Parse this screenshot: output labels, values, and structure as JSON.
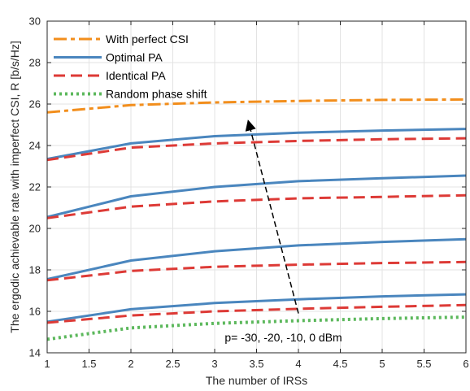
{
  "chart_data": {
    "type": "line",
    "xlabel": "The number of IRSs",
    "ylabel": "The ergodic achievable rate with imperfect CSI, R [b/s/Hz]",
    "xlim": [
      1,
      6
    ],
    "ylim": [
      14,
      30
    ],
    "xticks": [
      "1",
      "1.5",
      "2",
      "2.5",
      "3",
      "3.5",
      "4",
      "4.5",
      "5",
      "5.5",
      "6"
    ],
    "yticks": [
      "14",
      "16",
      "18",
      "20",
      "22",
      "24",
      "26",
      "28",
      "30"
    ],
    "grid": true,
    "legend_position": "top-left",
    "legend": [
      {
        "label": "With perfect CSI",
        "color": "#F28E1C",
        "style": "dashdot"
      },
      {
        "label": "Optimal PA",
        "color": "#4A86BE",
        "style": "solid"
      },
      {
        "label": "Identical PA",
        "color": "#DD3A36",
        "style": "dashed"
      },
      {
        "label": "Random phase shift",
        "color": "#5CB85C",
        "style": "dotted"
      }
    ],
    "annotation": {
      "text": "p= -30, -20, -10, 0 dBm",
      "arrow_from": [
        4.0,
        15.9
      ],
      "arrow_to": [
        3.4,
        25.2
      ]
    },
    "series": [
      {
        "group": "With perfect CSI",
        "color": "#F28E1C",
        "style": "dashdot",
        "x": [
          1,
          2,
          3,
          4,
          5,
          6
        ],
        "y": [
          25.6,
          25.95,
          26.08,
          26.15,
          26.2,
          26.22
        ]
      },
      {
        "group": "Optimal PA",
        "color": "#4A86BE",
        "style": "solid",
        "x": [
          1,
          2,
          3,
          4,
          5,
          6
        ],
        "y": [
          23.35,
          24.1,
          24.45,
          24.62,
          24.72,
          24.8
        ]
      },
      {
        "group": "Identical PA",
        "color": "#DD3A36",
        "style": "dashed",
        "x": [
          1,
          2,
          3,
          4,
          5,
          6
        ],
        "y": [
          23.3,
          23.9,
          24.1,
          24.22,
          24.3,
          24.35
        ]
      },
      {
        "group": "Optimal PA",
        "color": "#4A86BE",
        "style": "solid",
        "x": [
          1,
          2,
          3,
          4,
          5,
          6
        ],
        "y": [
          20.55,
          21.55,
          22.0,
          22.28,
          22.42,
          22.55
        ]
      },
      {
        "group": "Identical PA",
        "color": "#DD3A36",
        "style": "dashed",
        "x": [
          1,
          2,
          3,
          4,
          5,
          6
        ],
        "y": [
          20.5,
          21.05,
          21.3,
          21.45,
          21.52,
          21.6
        ]
      },
      {
        "group": "Optimal PA",
        "color": "#4A86BE",
        "style": "solid",
        "x": [
          1,
          2,
          3,
          4,
          5,
          6
        ],
        "y": [
          17.55,
          18.45,
          18.9,
          19.18,
          19.35,
          19.48
        ]
      },
      {
        "group": "Identical PA",
        "color": "#DD3A36",
        "style": "dashed",
        "x": [
          1,
          2,
          3,
          4,
          5,
          6
        ],
        "y": [
          17.5,
          17.95,
          18.15,
          18.25,
          18.33,
          18.38
        ]
      },
      {
        "group": "Optimal PA",
        "color": "#4A86BE",
        "style": "solid",
        "x": [
          1,
          2,
          3,
          4,
          5,
          6
        ],
        "y": [
          15.5,
          16.1,
          16.4,
          16.58,
          16.72,
          16.82
        ]
      },
      {
        "group": "Identical PA",
        "color": "#DD3A36",
        "style": "dashed",
        "x": [
          1,
          2,
          3,
          4,
          5,
          6
        ],
        "y": [
          15.45,
          15.8,
          16.0,
          16.12,
          16.22,
          16.3
        ]
      },
      {
        "group": "Random phase shift",
        "color": "#5CB85C",
        "style": "dotted",
        "x": [
          1,
          2,
          3,
          4,
          5,
          6
        ],
        "y": [
          14.65,
          15.2,
          15.42,
          15.55,
          15.65,
          15.72
        ]
      }
    ]
  }
}
